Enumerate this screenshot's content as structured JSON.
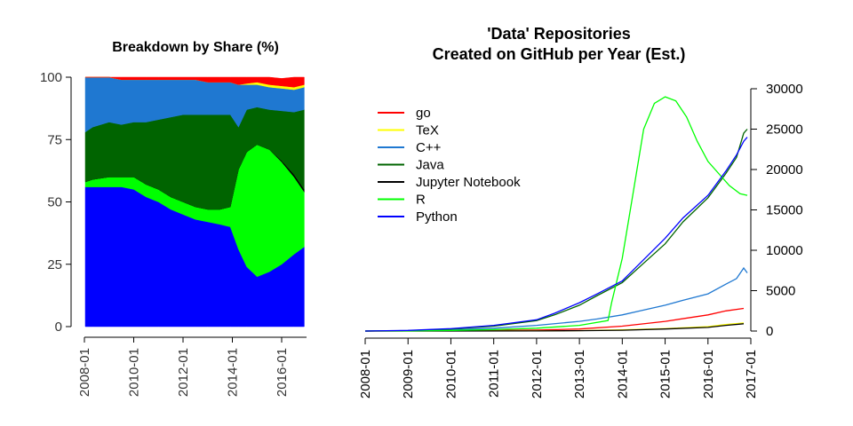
{
  "chart_data": [
    {
      "type": "area",
      "stacked": true,
      "title": "Breakdown by Share (%)",
      "xlabel": "",
      "ylabel": "",
      "ylim": [
        0,
        100
      ],
      "yticks": [
        0,
        25,
        50,
        75,
        100
      ],
      "xticks": [
        "2008-01",
        "2010-01",
        "2012-01",
        "2014-01",
        "2016-01"
      ],
      "grid": false,
      "x_dates": [
        "2008-01",
        "2008-05",
        "2009-01",
        "2009-07",
        "2010-01",
        "2010-07",
        "2011-01",
        "2011-07",
        "2012-01",
        "2012-07",
        "2013-01",
        "2013-07",
        "2013-12",
        "2014-04",
        "2014-08",
        "2015-01",
        "2015-07",
        "2016-01",
        "2016-07",
        "2016-12"
      ],
      "series": [
        {
          "name": "Python",
          "color": "#0000ff",
          "values": [
            56,
            56,
            56,
            56,
            55,
            52,
            50,
            47,
            45,
            43,
            42,
            41,
            40,
            31,
            24,
            20,
            22,
            25,
            29,
            32
          ]
        },
        {
          "name": "R",
          "color": "#00ff00",
          "values": [
            2,
            3,
            4,
            4,
            5,
            5,
            5,
            5,
            5,
            5,
            5,
            6,
            8,
            32,
            46,
            53,
            49,
            41,
            31,
            22
          ]
        },
        {
          "name": "Jupyter Notebook",
          "color": "#000000",
          "values": [
            0,
            0,
            0,
            0,
            0,
            0,
            0,
            0,
            0,
            0,
            0,
            0,
            0,
            0,
            0,
            0,
            0,
            0.5,
            1,
            1
          ]
        },
        {
          "name": "Java",
          "color": "#006400",
          "values": [
            20,
            21,
            22,
            21,
            22,
            25,
            28,
            32,
            35,
            37,
            38,
            38,
            37,
            17,
            17,
            15,
            16,
            20,
            25,
            32
          ]
        },
        {
          "name": "C++",
          "color": "#1f78d1",
          "values": [
            22,
            20,
            18,
            18,
            17,
            17,
            16,
            15,
            14,
            14,
            13,
            13,
            13,
            17,
            10,
            9,
            9,
            9,
            9,
            9
          ]
        },
        {
          "name": "TeX",
          "color": "#ffff00",
          "values": [
            0,
            0,
            0,
            0,
            0,
            0,
            0,
            0,
            0,
            0,
            0,
            0,
            0,
            0,
            0.5,
            1,
            1,
            1,
            1,
            1
          ]
        },
        {
          "name": "go",
          "color": "#ff0000",
          "values": [
            0,
            0,
            0,
            1,
            1,
            1,
            1,
            1,
            1,
            1,
            2,
            2,
            2,
            3,
            2.5,
            2,
            3,
            3,
            4,
            3
          ]
        }
      ]
    },
    {
      "type": "line",
      "title": [
        "'Data' Repositories",
        "Created on GitHub per Year (Est.)"
      ],
      "xlabel": "",
      "ylabel": "",
      "ylim": [
        0,
        30000
      ],
      "yticks": [
        0,
        5000,
        10000,
        15000,
        20000,
        25000,
        30000
      ],
      "y_axis_side": "right",
      "xticks": [
        "2008-01",
        "2009-01",
        "2010-01",
        "2011-01",
        "2012-01",
        "2013-01",
        "2014-01",
        "2015-01",
        "2016-01",
        "2017-01"
      ],
      "grid": false,
      "legend": {
        "position": "top-left",
        "entries": [
          "go",
          "TeX",
          "C++",
          "Java",
          "Jupyter Notebook",
          "R",
          "Python"
        ]
      },
      "series": [
        {
          "name": "go",
          "color": "#ff0000",
          "points": [
            [
              "2008-01",
              0
            ],
            [
              "2010-01",
              30
            ],
            [
              "2012-01",
              120
            ],
            [
              "2013-01",
              250
            ],
            [
              "2014-01",
              600
            ],
            [
              "2015-01",
              1200
            ],
            [
              "2016-01",
              2000
            ],
            [
              "2016-06",
              2500
            ],
            [
              "2016-11",
              2800
            ]
          ]
        },
        {
          "name": "TeX",
          "color": "#ffff00",
          "points": [
            [
              "2008-01",
              0
            ],
            [
              "2012-01",
              20
            ],
            [
              "2013-01",
              60
            ],
            [
              "2014-01",
              150
            ],
            [
              "2015-01",
              300
            ],
            [
              "2016-01",
              550
            ],
            [
              "2016-06",
              800
            ],
            [
              "2016-11",
              1000
            ]
          ]
        },
        {
          "name": "C++",
          "color": "#1f78d1",
          "points": [
            [
              "2008-01",
              0
            ],
            [
              "2009-01",
              50
            ],
            [
              "2010-01",
              150
            ],
            [
              "2011-01",
              350
            ],
            [
              "2012-01",
              700
            ],
            [
              "2013-01",
              1200
            ],
            [
              "2013-06",
              1500
            ],
            [
              "2014-01",
              2000
            ],
            [
              "2014-06",
              2500
            ],
            [
              "2015-01",
              3200
            ],
            [
              "2015-06",
              3800
            ],
            [
              "2016-01",
              4600
            ],
            [
              "2016-06",
              5800
            ],
            [
              "2016-09",
              6500
            ],
            [
              "2016-11",
              7800
            ],
            [
              "2016-12",
              7200
            ]
          ]
        },
        {
          "name": "Java",
          "color": "#006400",
          "points": [
            [
              "2008-01",
              0
            ],
            [
              "2009-01",
              60
            ],
            [
              "2010-01",
              250
            ],
            [
              "2011-01",
              600
            ],
            [
              "2012-01",
              1300
            ],
            [
              "2012-06",
              2000
            ],
            [
              "2013-01",
              3200
            ],
            [
              "2013-06",
              4400
            ],
            [
              "2014-01",
              6000
            ],
            [
              "2014-06",
              8000
            ],
            [
              "2015-01",
              10800
            ],
            [
              "2015-06",
              13500
            ],
            [
              "2016-01",
              16500
            ],
            [
              "2016-06",
              19500
            ],
            [
              "2016-09",
              21500
            ],
            [
              "2016-11",
              24500
            ],
            [
              "2016-12",
              25000
            ]
          ]
        },
        {
          "name": "Jupyter Notebook",
          "color": "#000000",
          "points": [
            [
              "2008-01",
              0
            ],
            [
              "2012-01",
              10
            ],
            [
              "2013-01",
              40
            ],
            [
              "2014-01",
              100
            ],
            [
              "2015-01",
              250
            ],
            [
              "2016-01",
              450
            ],
            [
              "2016-06",
              700
            ],
            [
              "2016-11",
              900
            ]
          ]
        },
        {
          "name": "R",
          "color": "#00ff00",
          "points": [
            [
              "2008-01",
              0
            ],
            [
              "2009-01",
              20
            ],
            [
              "2010-01",
              80
            ],
            [
              "2011-01",
              180
            ],
            [
              "2012-01",
              350
            ],
            [
              "2013-01",
              700
            ],
            [
              "2013-09",
              1300
            ],
            [
              "2013-10",
              3500
            ],
            [
              "2014-01",
              9000
            ],
            [
              "2014-04",
              17000
            ],
            [
              "2014-07",
              25000
            ],
            [
              "2014-10",
              28200
            ],
            [
              "2015-01",
              29000
            ],
            [
              "2015-04",
              28500
            ],
            [
              "2015-07",
              26500
            ],
            [
              "2015-10",
              23500
            ],
            [
              "2016-01",
              21000
            ],
            [
              "2016-04",
              19500
            ],
            [
              "2016-07",
              18000
            ],
            [
              "2016-10",
              17000
            ],
            [
              "2016-12",
              16800
            ]
          ]
        },
        {
          "name": "Python",
          "color": "#0000ff",
          "points": [
            [
              "2008-01",
              0
            ],
            [
              "2009-01",
              80
            ],
            [
              "2010-01",
              300
            ],
            [
              "2011-01",
              700
            ],
            [
              "2012-01",
              1400
            ],
            [
              "2012-06",
              2200
            ],
            [
              "2013-01",
              3500
            ],
            [
              "2013-06",
              4600
            ],
            [
              "2014-01",
              6200
            ],
            [
              "2014-06",
              8400
            ],
            [
              "2015-01",
              11500
            ],
            [
              "2015-06",
              14000
            ],
            [
              "2016-01",
              16800
            ],
            [
              "2016-06",
              19800
            ],
            [
              "2016-09",
              21800
            ],
            [
              "2016-11",
              23500
            ],
            [
              "2016-12",
              24000
            ]
          ]
        }
      ]
    }
  ]
}
